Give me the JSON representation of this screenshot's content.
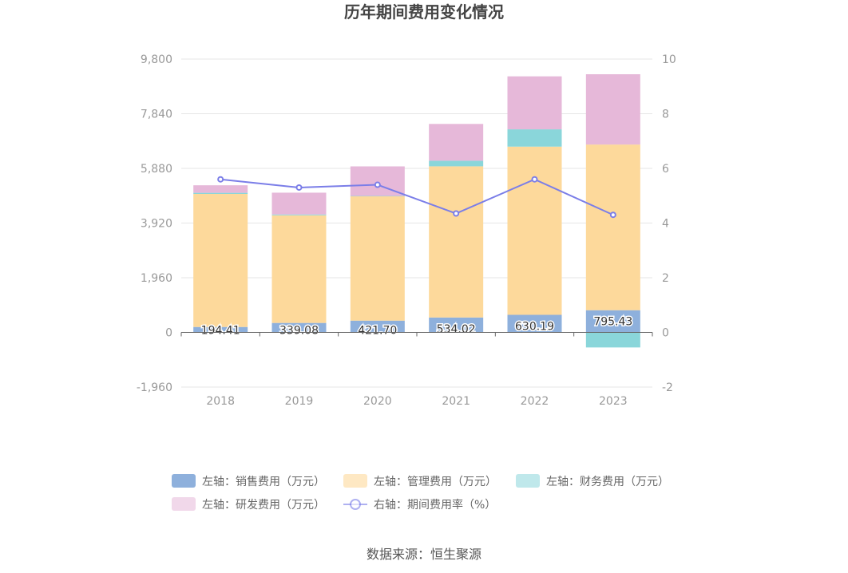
{
  "chart_data": {
    "type": "bar",
    "stacked": true,
    "title": "历年期间费用变化情况",
    "categories": [
      "2018",
      "2019",
      "2020",
      "2021",
      "2022",
      "2023"
    ],
    "left_axis": {
      "ylim": [
        -1960,
        9800
      ],
      "ticks": [
        "-1,960",
        "0",
        "1,960",
        "3,920",
        "5,880",
        "7,840",
        "9,800"
      ],
      "tick_values": [
        -1960,
        0,
        1960,
        3920,
        5880,
        7840,
        9800
      ]
    },
    "right_axis": {
      "ylim": [
        -2,
        10
      ],
      "ticks": [
        "-2",
        "0",
        "2",
        "4",
        "6",
        "8",
        "10"
      ],
      "tick_values": [
        -2,
        0,
        2,
        4,
        6,
        8,
        10
      ]
    },
    "grid": true,
    "legend_position": "bottom",
    "series": [
      {
        "name": "左轴：销售费用（万元）",
        "type": "bar",
        "axis": "left",
        "color": "#8eb0dc",
        "values": [
          194.41,
          339.08,
          421.7,
          534.02,
          630.19,
          795.43
        ],
        "labels": [
          "194.41",
          "339.08",
          "421.70",
          "534.02",
          "630.19",
          "795.43"
        ]
      },
      {
        "name": "左轴：管理费用（万元）",
        "type": "bar",
        "axis": "left",
        "color": "#fdd99b",
        "values": [
          4770,
          3860,
          4460,
          5420,
          6030,
          5940
        ]
      },
      {
        "name": "左轴：财务费用（万元）",
        "type": "bar",
        "axis": "left",
        "color": "#8ad6da",
        "values": [
          40,
          30,
          10,
          200,
          620,
          -540
        ]
      },
      {
        "name": "左轴：研发费用（万元）",
        "type": "bar",
        "axis": "left",
        "color": "#e6b8d9",
        "values": [
          270,
          780,
          1060,
          1320,
          1900,
          2520
        ]
      },
      {
        "name": "右轴：期间费用率（%）",
        "type": "line",
        "axis": "right",
        "color": "#7b7ee8",
        "values": [
          5.6,
          5.3,
          5.4,
          4.35,
          5.6,
          4.3
        ]
      }
    ],
    "source": "数据来源：恒生聚源"
  }
}
